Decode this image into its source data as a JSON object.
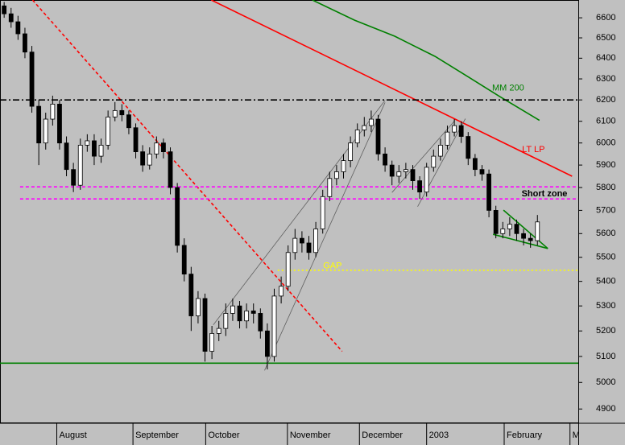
{
  "chart_data": {
    "type": "candlestick",
    "y_scale": "log",
    "ylim": [
      4850,
      6690
    ],
    "yticks": [
      4900,
      5000,
      5100,
      5200,
      5300,
      5400,
      5500,
      5600,
      5700,
      5800,
      5900,
      6000,
      6100,
      6200,
      6300,
      6400,
      6500,
      6600
    ],
    "xlim": [
      -0.6,
      82.9
    ],
    "xticks": [
      {
        "value": 7.6,
        "label": "August"
      },
      {
        "value": 18.6,
        "label": "September"
      },
      {
        "value": 29.1,
        "label": "October"
      },
      {
        "value": 40.9,
        "label": "November"
      },
      {
        "value": 51.3,
        "label": "December"
      },
      {
        "value": 61.0,
        "label": "2003"
      },
      {
        "value": 72.2,
        "label": "February"
      },
      {
        "value": 81.7,
        "label": "M"
      }
    ],
    "up_color": "#ffffff",
    "down_color": "#000000",
    "open": [
      6660,
      6620,
      6580,
      6520,
      6430,
      6170,
      6000,
      6110,
      6180,
      6000,
      5880,
      5810,
      5990,
      6010,
      5940,
      5990,
      6120,
      6150,
      6130,
      6070,
      5960,
      5900,
      5950,
      6000,
      5960,
      5800,
      5550,
      5430,
      5260,
      5330,
      5120,
      5190,
      5210,
      5270,
      5300,
      5240,
      5280,
      5270,
      5200,
      5100,
      5340,
      5380,
      5520,
      5580,
      5560,
      5520,
      5620,
      5760,
      5840,
      5870,
      5920,
      6000,
      6060,
      6080,
      6110,
      5950,
      5900,
      5850,
      5870,
      5880,
      5830,
      5780,
      5890,
      5940,
      5990,
      6050,
      6080,
      6030,
      5930,
      5880,
      5860,
      5700,
      5600,
      5620,
      5640,
      5600,
      5580,
      5570
    ],
    "high": [
      6680,
      6650,
      6610,
      6550,
      6460,
      6200,
      6140,
      6220,
      6200,
      6030,
      5910,
      6020,
      6040,
      6040,
      6020,
      6150,
      6190,
      6180,
      6150,
      6090,
      5990,
      5980,
      6030,
      6020,
      5980,
      5820,
      5580,
      5460,
      5360,
      5350,
      5220,
      5240,
      5310,
      5330,
      5320,
      5310,
      5310,
      5290,
      5230,
      5370,
      5420,
      5550,
      5620,
      5610,
      5590,
      5650,
      5790,
      5870,
      5900,
      5950,
      6030,
      6090,
      6120,
      6150,
      6130,
      5980,
      5920,
      5900,
      5910,
      5900,
      5850,
      5910,
      5970,
      6020,
      6080,
      6110,
      6100,
      6050,
      5950,
      5900,
      5880,
      5720,
      5650,
      5670,
      5660,
      5620,
      5600,
      5680
    ],
    "low": [
      6600,
      6550,
      6490,
      6400,
      6140,
      5900,
      5970,
      6080,
      5970,
      5850,
      5780,
      5790,
      5960,
      5900,
      5910,
      5970,
      6100,
      6100,
      6040,
      5930,
      5870,
      5880,
      5930,
      5930,
      5770,
      5520,
      5400,
      5200,
      5230,
      5080,
      5090,
      5160,
      5180,
      5240,
      5210,
      5210,
      5230,
      5170,
      5050,
      5080,
      5310,
      5360,
      5490,
      5520,
      5490,
      5500,
      5600,
      5740,
      5810,
      5840,
      5890,
      5980,
      6030,
      6050,
      5920,
      5870,
      5810,
      5820,
      5840,
      5790,
      5750,
      5760,
      5870,
      5920,
      5970,
      6030,
      6000,
      5900,
      5850,
      5830,
      5670,
      5580,
      5580,
      5590,
      5570,
      5550,
      5540,
      5550
    ],
    "close": [
      6620,
      6580,
      6520,
      6430,
      6170,
      6000,
      6110,
      6180,
      6000,
      5880,
      5810,
      5990,
      6010,
      5940,
      5990,
      6120,
      6150,
      6130,
      6070,
      5960,
      5900,
      5950,
      6000,
      5960,
      5800,
      5550,
      5430,
      5260,
      5330,
      5120,
      5190,
      5210,
      5270,
      5300,
      5240,
      5280,
      5270,
      5200,
      5100,
      5340,
      5380,
      5520,
      5580,
      5560,
      5520,
      5620,
      5760,
      5840,
      5870,
      5920,
      6000,
      6060,
      6080,
      6110,
      5950,
      5900,
      5850,
      5870,
      5880,
      5830,
      5780,
      5890,
      5940,
      5990,
      6050,
      6080,
      6030,
      5930,
      5880,
      5860,
      5700,
      5600,
      5620,
      5640,
      5600,
      5580,
      5570,
      5650
    ],
    "overlays": [
      {
        "color": "#ff0000",
        "style": "dashed",
        "points": [
          [
            4.1,
            6690
          ],
          [
            48.8,
            5120
          ]
        ]
      },
      {
        "label": "LT LP",
        "color": "#ff0000",
        "style": "solid",
        "points": [
          [
            29.9,
            6690
          ],
          [
            82.0,
            5850
          ]
        ]
      },
      {
        "label": "MM 200",
        "color": "#008000",
        "style": "solid",
        "points": [
          [
            44.5,
            6690
          ],
          [
            50.6,
            6588
          ],
          [
            56.4,
            6508
          ],
          [
            62.2,
            6409
          ],
          [
            66.9,
            6312
          ],
          [
            71.5,
            6217
          ],
          [
            77.3,
            6104
          ]
        ]
      },
      {
        "color": "#000000",
        "style": "dashdot",
        "points": [
          [
            -0.6,
            6200
          ],
          [
            82.9,
            6200
          ]
        ]
      },
      {
        "color": "#ff00ff",
        "style": "dashed",
        "points": [
          [
            2.3,
            5803
          ],
          [
            82.9,
            5803
          ]
        ]
      },
      {
        "label": "Short zone",
        "color": "#ff00ff",
        "style": "dashed",
        "points": [
          [
            2.3,
            5750
          ],
          [
            82.9,
            5750
          ]
        ]
      },
      {
        "label": "GAP",
        "color": "#ffff00",
        "style": "dotted",
        "points": [
          [
            39.5,
            5446
          ],
          [
            82.9,
            5446
          ]
        ]
      },
      {
        "color": "#008000",
        "style": "solid",
        "points": [
          [
            -0.6,
            5074
          ],
          [
            82.9,
            5074
          ]
        ]
      },
      {
        "color": "#606060",
        "style": "solid",
        "points": [
          [
            30.2,
            5224
          ],
          [
            55.0,
            6198
          ]
        ]
      },
      {
        "color": "#606060",
        "style": "solid",
        "points": [
          [
            37.6,
            5046
          ],
          [
            55.0,
            6188
          ]
        ]
      },
      {
        "color": "#606060",
        "style": "solid",
        "points": [
          [
            56.0,
            5778
          ],
          [
            65.1,
            6104
          ]
        ]
      },
      {
        "color": "#606060",
        "style": "solid",
        "points": [
          [
            59.7,
            5716
          ],
          [
            66.6,
            6112
          ]
        ]
      },
      {
        "color": "#008000",
        "style": "solid",
        "points": [
          [
            72.1,
            5701
          ],
          [
            78.5,
            5537
          ]
        ]
      },
      {
        "color": "#008000",
        "style": "solid",
        "points": [
          [
            70.6,
            5597
          ],
          [
            78.5,
            5537
          ]
        ]
      }
    ]
  }
}
